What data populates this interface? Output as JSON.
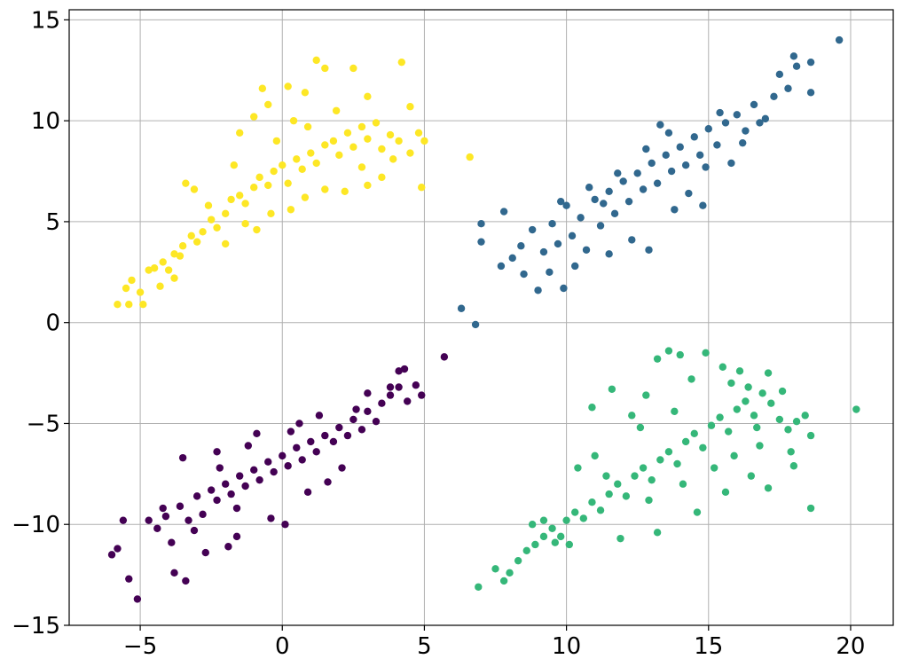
{
  "chart_data": {
    "type": "scatter",
    "title": "",
    "xlabel": "",
    "ylabel": "",
    "xlim": [
      -7.5,
      21.5
    ],
    "ylim": [
      -15,
      15.5
    ],
    "x_ticks": [
      -5,
      0,
      5,
      10,
      15,
      20
    ],
    "y_ticks": [
      -15,
      -10,
      -5,
      0,
      5,
      10,
      15
    ],
    "x_tick_labels": [
      "−5",
      "0",
      "5",
      "10",
      "15",
      "20"
    ],
    "y_tick_labels": [
      "−15",
      "−10",
      "−5",
      "0",
      "5",
      "10",
      "15"
    ],
    "grid": true,
    "legend": "none",
    "series": [
      {
        "color": "#fde725",
        "points": [
          [
            -5.8,
            0.9
          ],
          [
            -5.4,
            0.9
          ],
          [
            -4.9,
            0.9
          ],
          [
            -5.5,
            1.7
          ],
          [
            -5.3,
            2.1
          ],
          [
            -5.0,
            1.5
          ],
          [
            -4.7,
            2.6
          ],
          [
            -4.5,
            2.7
          ],
          [
            -4.2,
            3.0
          ],
          [
            -4.0,
            2.6
          ],
          [
            -3.8,
            3.4
          ],
          [
            -3.5,
            3.8
          ],
          [
            -3.6,
            3.3
          ],
          [
            -3.2,
            4.3
          ],
          [
            -3.0,
            4.0
          ],
          [
            -3.4,
            6.9
          ],
          [
            -3.1,
            6.6
          ],
          [
            -2.8,
            4.5
          ],
          [
            -2.5,
            5.1
          ],
          [
            -2.3,
            4.7
          ],
          [
            -2.0,
            5.4
          ],
          [
            -1.8,
            6.1
          ],
          [
            -1.5,
            6.3
          ],
          [
            -1.3,
            5.9
          ],
          [
            -1.0,
            6.7
          ],
          [
            -0.8,
            7.2
          ],
          [
            -0.5,
            6.8
          ],
          [
            -0.3,
            7.5
          ],
          [
            0.0,
            7.8
          ],
          [
            0.2,
            6.9
          ],
          [
            0.5,
            8.1
          ],
          [
            0.7,
            7.6
          ],
          [
            1.0,
            8.4
          ],
          [
            1.2,
            7.9
          ],
          [
            1.5,
            8.8
          ],
          [
            1.8,
            9.0
          ],
          [
            2.0,
            8.3
          ],
          [
            2.3,
            9.4
          ],
          [
            2.5,
            8.7
          ],
          [
            2.8,
            9.7
          ],
          [
            3.0,
            9.1
          ],
          [
            3.3,
            9.9
          ],
          [
            3.5,
            8.6
          ],
          [
            3.8,
            9.3
          ],
          [
            4.1,
            9.0
          ],
          [
            4.5,
            8.4
          ],
          [
            4.8,
            9.4
          ],
          [
            5.0,
            9.0
          ],
          [
            -1.5,
            9.4
          ],
          [
            -1.0,
            10.2
          ],
          [
            -0.5,
            10.8
          ],
          [
            -0.7,
            11.6
          ],
          [
            0.2,
            11.7
          ],
          [
            0.8,
            11.4
          ],
          [
            1.2,
            13.0
          ],
          [
            1.5,
            12.6
          ],
          [
            2.5,
            12.6
          ],
          [
            4.2,
            12.9
          ],
          [
            3.0,
            11.2
          ],
          [
            4.5,
            10.7
          ],
          [
            -0.4,
            5.4
          ],
          [
            0.3,
            5.6
          ],
          [
            0.8,
            6.2
          ],
          [
            1.5,
            6.6
          ],
          [
            2.2,
            6.5
          ],
          [
            3.0,
            6.8
          ],
          [
            3.5,
            7.2
          ],
          [
            4.9,
            6.7
          ],
          [
            6.6,
            8.2
          ],
          [
            -1.3,
            4.9
          ],
          [
            -2.0,
            3.9
          ],
          [
            -0.9,
            4.6
          ],
          [
            -3.8,
            2.2
          ],
          [
            -4.3,
            1.8
          ],
          [
            -2.6,
            5.8
          ],
          [
            -1.7,
            7.8
          ],
          [
            0.4,
            10.0
          ],
          [
            1.9,
            10.5
          ],
          [
            2.8,
            7.7
          ],
          [
            3.9,
            8.1
          ],
          [
            -0.2,
            9.0
          ],
          [
            0.9,
            9.7
          ]
        ]
      },
      {
        "color": "#31688e",
        "points": [
          [
            6.3,
            0.7
          ],
          [
            6.8,
            -0.1
          ],
          [
            7.0,
            4.0
          ],
          [
            7.0,
            4.9
          ],
          [
            7.7,
            2.8
          ],
          [
            7.8,
            5.5
          ],
          [
            8.1,
            3.2
          ],
          [
            8.4,
            3.8
          ],
          [
            8.8,
            4.6
          ],
          [
            9.0,
            1.6
          ],
          [
            9.2,
            3.5
          ],
          [
            9.5,
            4.9
          ],
          [
            9.7,
            3.9
          ],
          [
            9.9,
            1.7
          ],
          [
            10.0,
            5.8
          ],
          [
            10.2,
            4.3
          ],
          [
            10.5,
            5.2
          ],
          [
            10.7,
            3.6
          ],
          [
            11.0,
            6.1
          ],
          [
            11.2,
            4.8
          ],
          [
            11.5,
            6.5
          ],
          [
            11.7,
            5.4
          ],
          [
            12.0,
            7.0
          ],
          [
            12.2,
            6.0
          ],
          [
            12.5,
            7.4
          ],
          [
            12.7,
            6.6
          ],
          [
            13.0,
            7.9
          ],
          [
            13.2,
            6.9
          ],
          [
            13.5,
            8.3
          ],
          [
            13.7,
            7.5
          ],
          [
            14.0,
            8.7
          ],
          [
            14.2,
            7.8
          ],
          [
            14.5,
            9.2
          ],
          [
            14.7,
            8.3
          ],
          [
            15.0,
            9.6
          ],
          [
            15.3,
            8.8
          ],
          [
            15.6,
            9.9
          ],
          [
            16.0,
            10.3
          ],
          [
            16.3,
            9.5
          ],
          [
            16.6,
            10.8
          ],
          [
            17.0,
            10.1
          ],
          [
            17.3,
            11.2
          ],
          [
            17.8,
            11.6
          ],
          [
            18.0,
            13.2
          ],
          [
            18.1,
            12.7
          ],
          [
            18.6,
            12.9
          ],
          [
            18.6,
            11.4
          ],
          [
            19.6,
            14.0
          ],
          [
            17.5,
            12.3
          ],
          [
            16.8,
            9.9
          ],
          [
            11.5,
            3.4
          ],
          [
            12.3,
            4.1
          ],
          [
            13.8,
            5.6
          ],
          [
            14.8,
            5.8
          ],
          [
            10.3,
            2.8
          ],
          [
            9.4,
            2.5
          ],
          [
            8.5,
            2.4
          ],
          [
            11.8,
            7.4
          ],
          [
            12.8,
            8.6
          ],
          [
            13.6,
            9.4
          ],
          [
            14.9,
            7.7
          ],
          [
            15.8,
            7.9
          ],
          [
            10.8,
            6.7
          ],
          [
            9.8,
            6.0
          ],
          [
            12.9,
            3.6
          ],
          [
            11.3,
            5.9
          ],
          [
            14.3,
            6.4
          ],
          [
            15.4,
            10.4
          ],
          [
            16.2,
            8.9
          ],
          [
            13.3,
            9.8
          ]
        ]
      },
      {
        "color": "#35b779",
        "points": [
          [
            6.9,
            -13.1
          ],
          [
            7.5,
            -12.2
          ],
          [
            7.8,
            -12.8
          ],
          [
            8.0,
            -12.4
          ],
          [
            8.3,
            -11.8
          ],
          [
            8.6,
            -11.3
          ],
          [
            8.9,
            -11.0
          ],
          [
            9.2,
            -10.6
          ],
          [
            9.5,
            -10.2
          ],
          [
            9.8,
            -10.6
          ],
          [
            10.0,
            -9.8
          ],
          [
            10.3,
            -9.4
          ],
          [
            10.6,
            -9.7
          ],
          [
            10.9,
            -8.9
          ],
          [
            11.2,
            -9.3
          ],
          [
            11.5,
            -8.5
          ],
          [
            11.8,
            -8.0
          ],
          [
            12.1,
            -8.6
          ],
          [
            12.4,
            -7.6
          ],
          [
            12.7,
            -7.2
          ],
          [
            13.0,
            -7.8
          ],
          [
            13.3,
            -6.8
          ],
          [
            13.6,
            -6.4
          ],
          [
            13.9,
            -7.0
          ],
          [
            14.2,
            -5.9
          ],
          [
            14.5,
            -5.5
          ],
          [
            14.8,
            -6.2
          ],
          [
            15.1,
            -5.1
          ],
          [
            15.4,
            -4.7
          ],
          [
            15.7,
            -5.4
          ],
          [
            16.0,
            -4.3
          ],
          [
            16.3,
            -3.9
          ],
          [
            16.6,
            -4.6
          ],
          [
            16.9,
            -3.5
          ],
          [
            17.2,
            -4.0
          ],
          [
            17.5,
            -4.8
          ],
          [
            17.8,
            -5.3
          ],
          [
            18.1,
            -4.9
          ],
          [
            18.4,
            -4.6
          ],
          [
            18.6,
            -5.6
          ],
          [
            18.6,
            -9.2
          ],
          [
            20.2,
            -4.3
          ],
          [
            18.0,
            -7.1
          ],
          [
            17.1,
            -8.2
          ],
          [
            16.5,
            -7.6
          ],
          [
            15.6,
            -8.4
          ],
          [
            14.6,
            -9.4
          ],
          [
            13.2,
            -10.4
          ],
          [
            11.9,
            -10.7
          ],
          [
            14.0,
            -1.6
          ],
          [
            13.6,
            -1.4
          ],
          [
            14.9,
            -1.5
          ],
          [
            13.2,
            -1.8
          ],
          [
            15.5,
            -2.2
          ],
          [
            16.1,
            -2.4
          ],
          [
            17.1,
            -2.5
          ],
          [
            11.6,
            -3.3
          ],
          [
            10.9,
            -4.2
          ],
          [
            12.3,
            -4.6
          ],
          [
            12.8,
            -3.6
          ],
          [
            14.4,
            -2.8
          ],
          [
            15.8,
            -3.0
          ],
          [
            16.4,
            -3.2
          ],
          [
            17.6,
            -3.4
          ],
          [
            10.4,
            -7.2
          ],
          [
            11.0,
            -6.6
          ],
          [
            12.6,
            -5.2
          ],
          [
            13.8,
            -4.4
          ],
          [
            15.2,
            -7.2
          ],
          [
            16.8,
            -6.1
          ],
          [
            9.2,
            -9.8
          ],
          [
            10.1,
            -11.0
          ],
          [
            8.8,
            -10.0
          ],
          [
            11.4,
            -7.6
          ],
          [
            12.9,
            -8.8
          ],
          [
            14.1,
            -8.0
          ],
          [
            15.9,
            -6.6
          ],
          [
            16.7,
            -5.2
          ],
          [
            17.9,
            -6.4
          ],
          [
            9.6,
            -10.9
          ]
        ]
      },
      {
        "color": "#440154",
        "points": [
          [
            -6.0,
            -11.5
          ],
          [
            -5.8,
            -11.2
          ],
          [
            -5.6,
            -9.8
          ],
          [
            -5.4,
            -12.7
          ],
          [
            -5.1,
            -13.7
          ],
          [
            -4.7,
            -9.8
          ],
          [
            -4.4,
            -10.2
          ],
          [
            -4.1,
            -9.6
          ],
          [
            -3.9,
            -10.9
          ],
          [
            -3.8,
            -12.4
          ],
          [
            -3.4,
            -12.8
          ],
          [
            -3.6,
            -9.1
          ],
          [
            -3.3,
            -9.8
          ],
          [
            -3.0,
            -8.6
          ],
          [
            -2.8,
            -9.5
          ],
          [
            -2.5,
            -8.3
          ],
          [
            -2.3,
            -8.8
          ],
          [
            -2.0,
            -8.0
          ],
          [
            -1.8,
            -8.5
          ],
          [
            -1.5,
            -7.6
          ],
          [
            -1.3,
            -8.1
          ],
          [
            -1.0,
            -7.3
          ],
          [
            -0.8,
            -7.8
          ],
          [
            -0.5,
            -6.9
          ],
          [
            -0.3,
            -7.4
          ],
          [
            0.0,
            -6.6
          ],
          [
            0.2,
            -7.1
          ],
          [
            0.5,
            -6.2
          ],
          [
            0.7,
            -6.8
          ],
          [
            1.0,
            -5.9
          ],
          [
            1.2,
            -6.4
          ],
          [
            1.5,
            -5.6
          ],
          [
            1.8,
            -5.9
          ],
          [
            2.0,
            -5.2
          ],
          [
            2.3,
            -5.6
          ],
          [
            2.5,
            -4.8
          ],
          [
            2.8,
            -5.3
          ],
          [
            3.0,
            -4.4
          ],
          [
            3.3,
            -4.9
          ],
          [
            3.5,
            -4.0
          ],
          [
            3.8,
            -3.6
          ],
          [
            4.1,
            -3.2
          ],
          [
            4.4,
            -3.9
          ],
          [
            4.7,
            -3.1
          ],
          [
            4.9,
            -3.6
          ],
          [
            4.3,
            -2.3
          ],
          [
            4.1,
            -2.4
          ],
          [
            3.8,
            -3.2
          ],
          [
            3.0,
            -3.5
          ],
          [
            2.6,
            -4.3
          ],
          [
            5.7,
            -1.7
          ],
          [
            -3.5,
            -6.7
          ],
          [
            -2.3,
            -6.4
          ],
          [
            -1.2,
            -6.1
          ],
          [
            0.3,
            -5.4
          ],
          [
            -2.7,
            -11.4
          ],
          [
            -1.6,
            -10.6
          ],
          [
            -0.4,
            -9.7
          ],
          [
            0.1,
            -10.0
          ],
          [
            -1.9,
            -11.1
          ],
          [
            -3.1,
            -10.3
          ],
          [
            0.9,
            -8.4
          ],
          [
            1.6,
            -7.9
          ],
          [
            2.1,
            -7.2
          ],
          [
            -0.9,
            -5.5
          ],
          [
            -1.6,
            -9.2
          ],
          [
            0.6,
            -5.0
          ],
          [
            1.3,
            -4.6
          ],
          [
            -2.2,
            -7.2
          ],
          [
            -4.2,
            -9.2
          ]
        ]
      }
    ]
  }
}
